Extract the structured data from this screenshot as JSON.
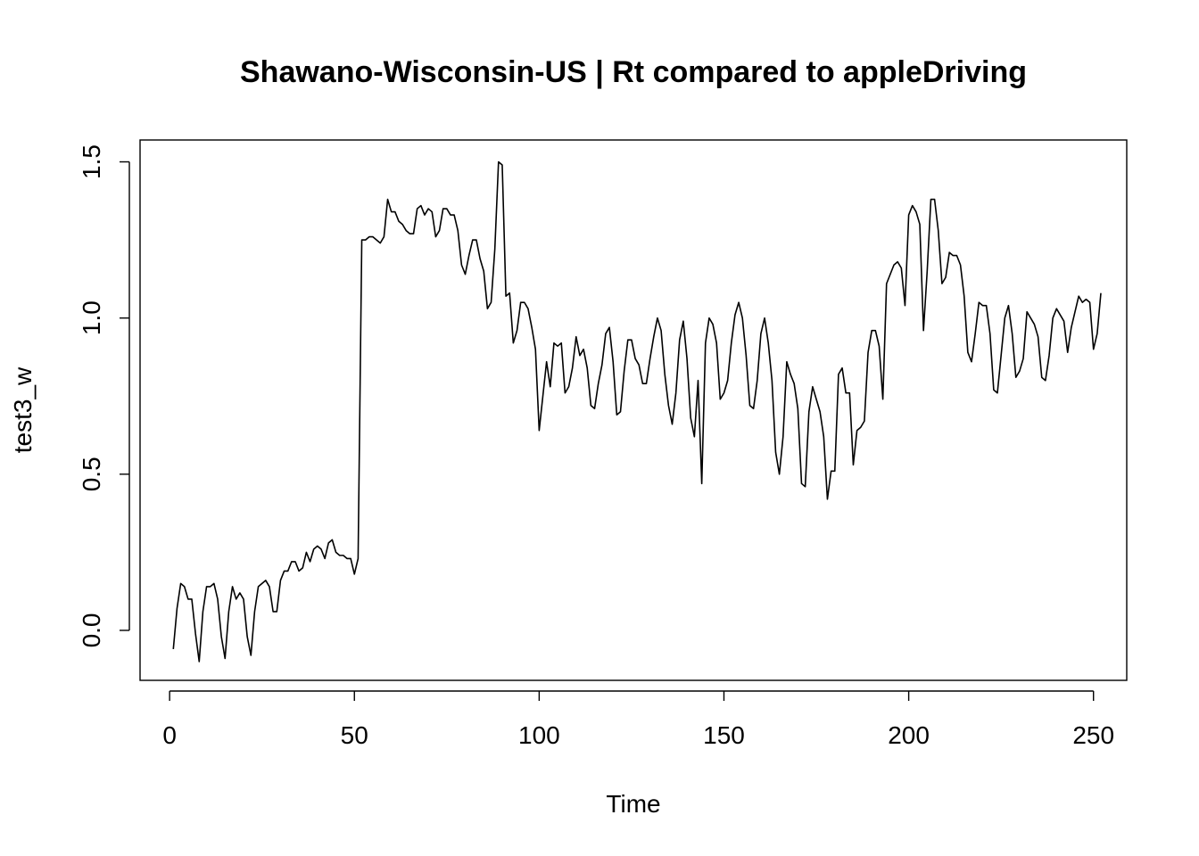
{
  "chart_data": {
    "type": "line",
    "title": "Shawano-Wisconsin-US | Rt compared to appleDriving",
    "xlabel": "Time",
    "ylabel": "test3_w",
    "xlim": [
      -8,
      259
    ],
    "ylim": [
      -0.16,
      1.57
    ],
    "x_ticks": [
      0,
      50,
      100,
      150,
      200,
      250
    ],
    "x_tick_labels": [
      "0",
      "50",
      "100",
      "150",
      "200",
      "250"
    ],
    "y_ticks": [
      0.0,
      0.5,
      1.0,
      1.5
    ],
    "y_tick_labels": [
      "0.0",
      "0.5",
      "1.0",
      "1.5"
    ],
    "grid": false,
    "legend": "none",
    "series": [
      {
        "x_start": 1,
        "values": [
          -0.06,
          0.07,
          0.15,
          0.14,
          0.1,
          0.1,
          -0.01,
          -0.1,
          0.06,
          0.14,
          0.14,
          0.15,
          0.1,
          -0.02,
          -0.09,
          0.06,
          0.14,
          0.1,
          0.12,
          0.1,
          -0.02,
          -0.08,
          0.06,
          0.14,
          0.15,
          0.16,
          0.14,
          0.06,
          0.06,
          0.16,
          0.19,
          0.19,
          0.22,
          0.22,
          0.19,
          0.2,
          0.25,
          0.22,
          0.26,
          0.27,
          0.26,
          0.23,
          0.28,
          0.29,
          0.25,
          0.24,
          0.24,
          0.23,
          0.23,
          0.18,
          0.23,
          1.25,
          1.25,
          1.26,
          1.26,
          1.25,
          1.24,
          1.26,
          1.38,
          1.34,
          1.34,
          1.31,
          1.3,
          1.28,
          1.27,
          1.27,
          1.35,
          1.36,
          1.33,
          1.35,
          1.34,
          1.26,
          1.28,
          1.35,
          1.35,
          1.33,
          1.33,
          1.28,
          1.17,
          1.14,
          1.2,
          1.25,
          1.25,
          1.19,
          1.15,
          1.03,
          1.05,
          1.22,
          1.5,
          1.49,
          1.07,
          1.08,
          0.92,
          0.96,
          1.05,
          1.05,
          1.03,
          0.97,
          0.9,
          0.64,
          0.75,
          0.86,
          0.78,
          0.92,
          0.91,
          0.92,
          0.76,
          0.78,
          0.84,
          0.94,
          0.88,
          0.9,
          0.84,
          0.72,
          0.71,
          0.79,
          0.85,
          0.95,
          0.97,
          0.86,
          0.69,
          0.7,
          0.83,
          0.93,
          0.93,
          0.87,
          0.85,
          0.79,
          0.79,
          0.87,
          0.94,
          1.0,
          0.96,
          0.82,
          0.72,
          0.66,
          0.76,
          0.93,
          0.99,
          0.87,
          0.68,
          0.62,
          0.8,
          0.47,
          0.92,
          1.0,
          0.98,
          0.92,
          0.74,
          0.76,
          0.8,
          0.92,
          1.01,
          1.05,
          1.0,
          0.88,
          0.72,
          0.71,
          0.8,
          0.95,
          1.0,
          0.92,
          0.8,
          0.57,
          0.5,
          0.62,
          0.86,
          0.82,
          0.79,
          0.71,
          0.47,
          0.46,
          0.7,
          0.78,
          0.74,
          0.7,
          0.62,
          0.42,
          0.51,
          0.51,
          0.82,
          0.84,
          0.76,
          0.76,
          0.53,
          0.64,
          0.65,
          0.67,
          0.89,
          0.96,
          0.96,
          0.91,
          0.74,
          1.11,
          1.14,
          1.17,
          1.18,
          1.16,
          1.04,
          1.33,
          1.36,
          1.34,
          1.3,
          0.96,
          1.15,
          1.38,
          1.38,
          1.28,
          1.11,
          1.13,
          1.21,
          1.2,
          1.2,
          1.17,
          1.07,
          0.89,
          0.86,
          0.95,
          1.05,
          1.04,
          1.04,
          0.95,
          0.77,
          0.76,
          0.88,
          1.0,
          1.04,
          0.95,
          0.81,
          0.83,
          0.87,
          1.02,
          1.0,
          0.98,
          0.94,
          0.81,
          0.8,
          0.88,
          1.0,
          1.03,
          1.01,
          0.99,
          0.89,
          0.97,
          1.02,
          1.07,
          1.05,
          1.06,
          1.05,
          0.9,
          0.95,
          1.08
        ]
      }
    ]
  }
}
